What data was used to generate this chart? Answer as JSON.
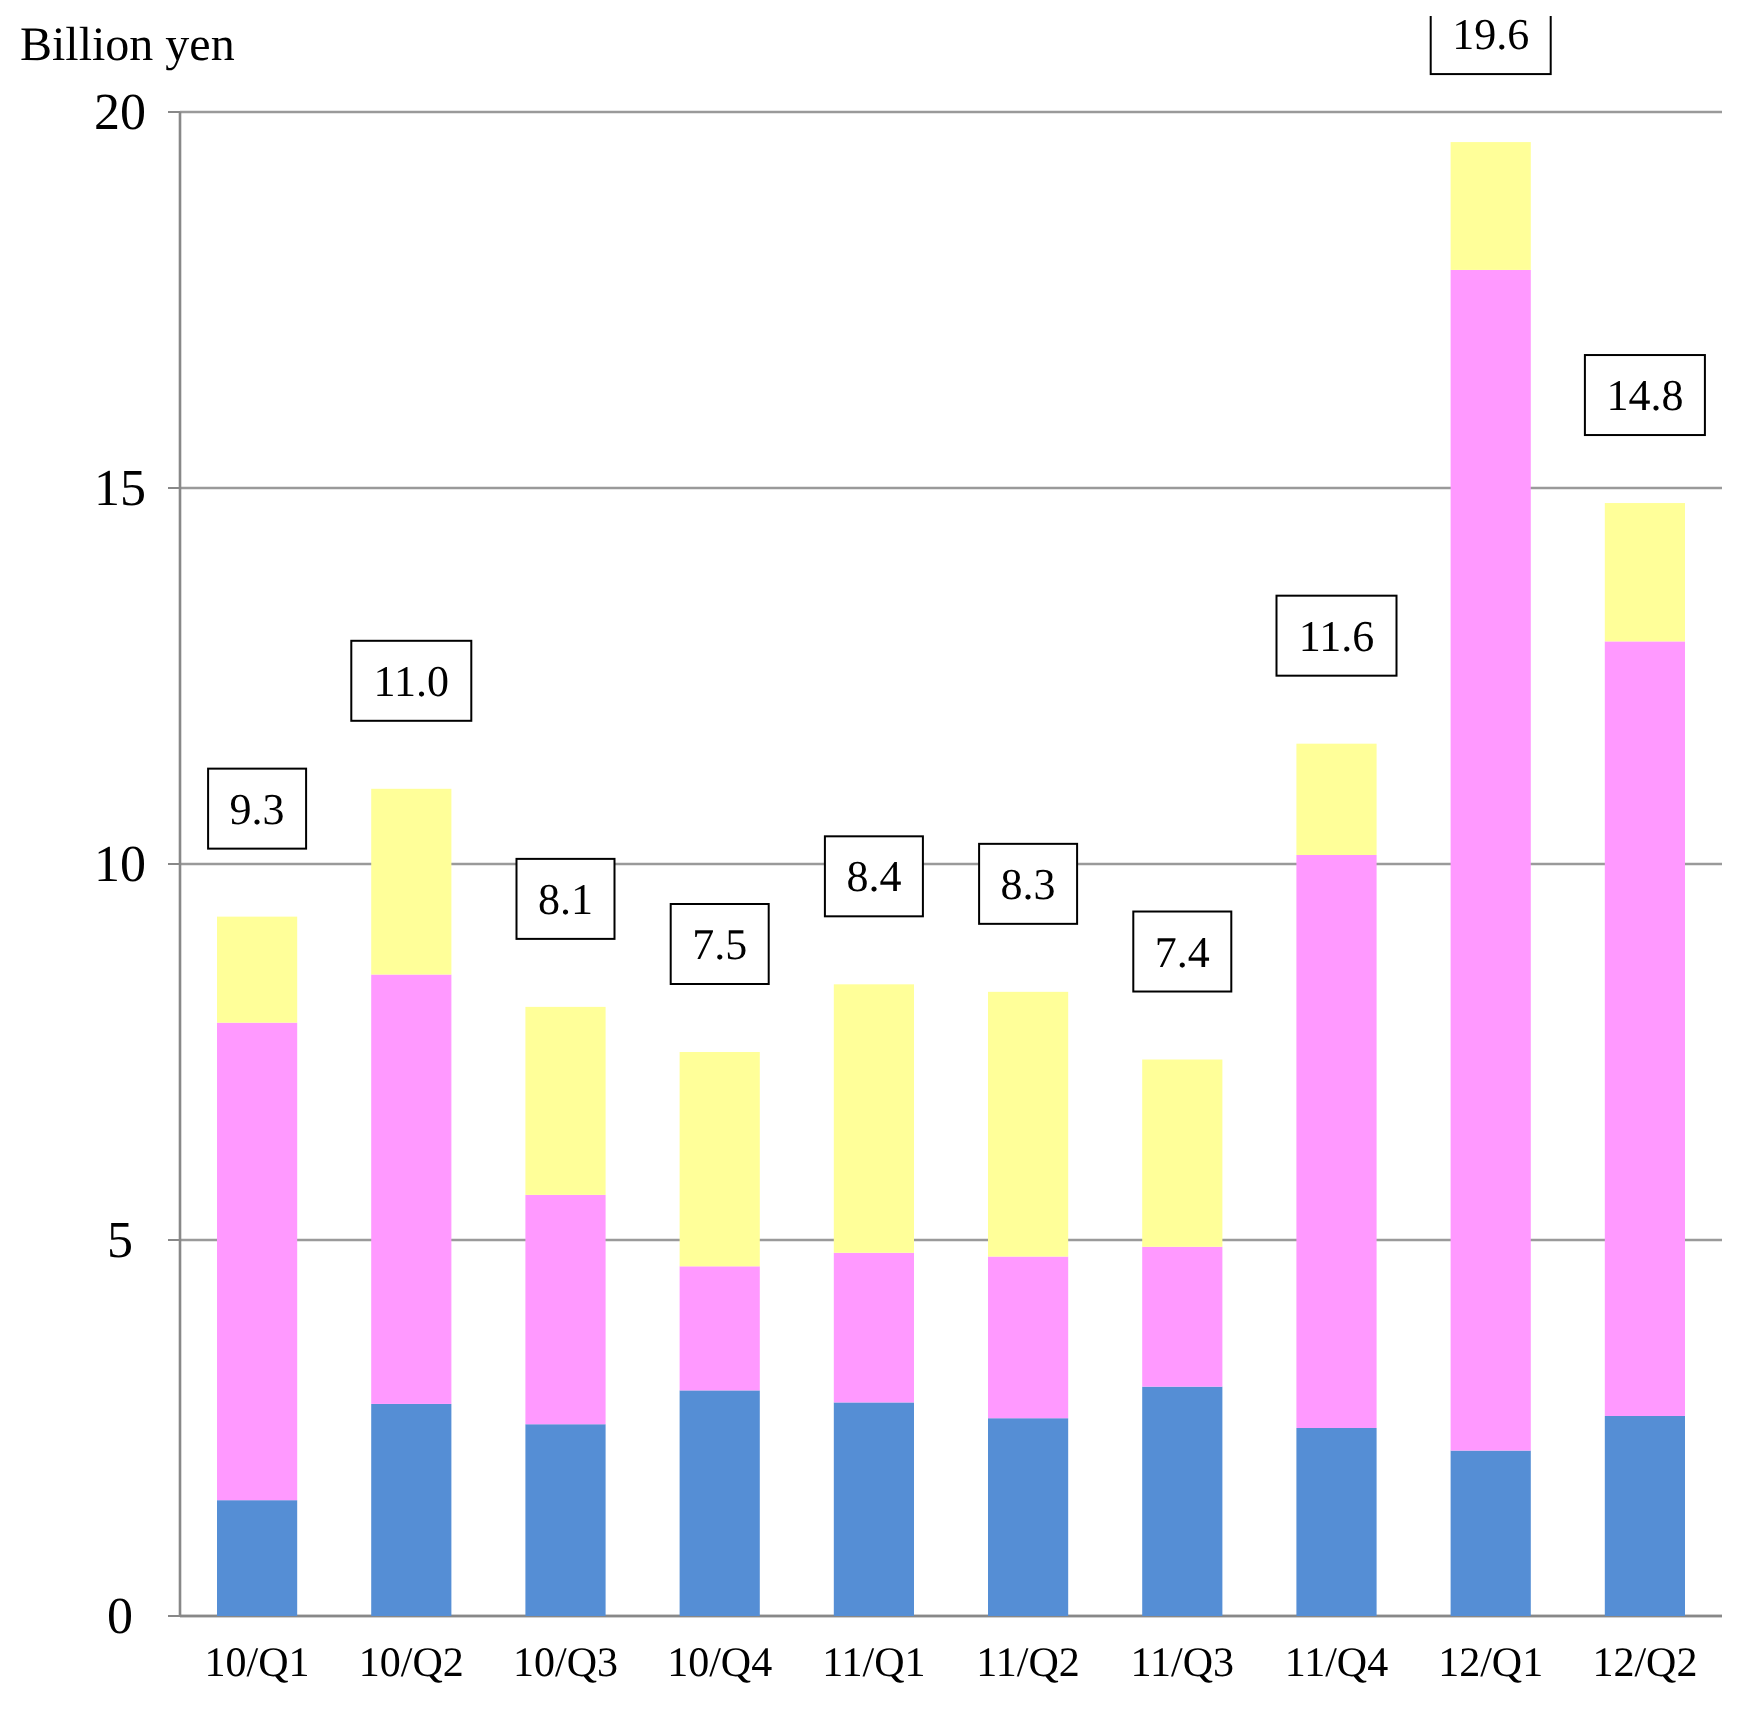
{
  "chart_data": {
    "type": "bar",
    "ylabel": "Billion yen",
    "stacked": true,
    "grid": "y",
    "categories": [
      "10/Q1",
      "10/Q2",
      "10/Q3",
      "10/Q4",
      "11/Q1",
      "11/Q2",
      "11/Q3",
      "11/Q4",
      "12/Q1",
      "12/Q2"
    ],
    "series": [
      {
        "color": "#558ed5",
        "values": [
          1.54,
          2.82,
          2.55,
          3.0,
          2.84,
          2.63,
          3.05,
          2.5,
          2.2,
          2.66
        ]
      },
      {
        "color": "#ff99ff",
        "values": [
          6.35,
          5.71,
          3.05,
          1.65,
          1.99,
          2.15,
          1.86,
          7.62,
          15.7,
          10.3
        ]
      },
      {
        "color": "#ffff99",
        "values": [
          1.41,
          2.47,
          2.5,
          2.85,
          3.57,
          3.52,
          2.49,
          1.48,
          1.7,
          1.84
        ]
      }
    ],
    "totals": [
      "9.3",
      "11.0",
      "8.1",
      "7.5",
      "8.4",
      "8.3",
      "7.4",
      "11.6",
      "19.6",
      "14.8"
    ],
    "ylim": [
      0,
      20
    ],
    "yticks": [
      0,
      5,
      10,
      15,
      20
    ]
  }
}
